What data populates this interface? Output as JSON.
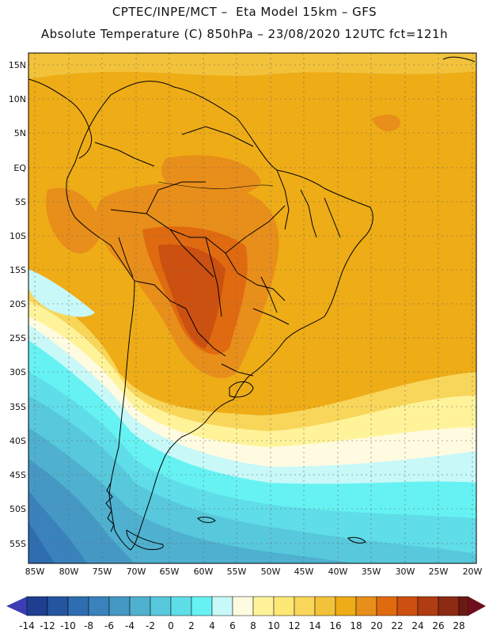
{
  "title": {
    "line1": "CPTEC/INPE/MCT –  Eta Model 15km – GFS",
    "line2": "Absolute Temperature (C) 850hPa – 23/08/2020 12UTC fct=121h"
  },
  "map": {
    "lat_labels": [
      "15N",
      "10N",
      "5N",
      "EQ",
      "5S",
      "10S",
      "15S",
      "20S",
      "25S",
      "30S",
      "35S",
      "40S",
      "45S",
      "50S",
      "55S"
    ],
    "lon_labels": [
      "85W",
      "80W",
      "75W",
      "70W",
      "65W",
      "60W",
      "55W",
      "50W",
      "45W",
      "40W",
      "35W",
      "30W",
      "25W",
      "20W"
    ]
  },
  "colorbar": {
    "labels": [
      "-14",
      "-12",
      "-10",
      "-8",
      "-6",
      "-4",
      "-2",
      "0",
      "2",
      "4",
      "6",
      "8",
      "10",
      "12",
      "14",
      "16",
      "18",
      "20",
      "22",
      "24",
      "26",
      "28"
    ],
    "colors": [
      "#1e3f8f",
      "#25559e",
      "#2e6db0",
      "#3a82bc",
      "#4598c4",
      "#4fb0cf",
      "#58c8dc",
      "#5fdde8",
      "#66f2f2",
      "#c8f8f8",
      "#fffbe0",
      "#fff39a",
      "#fde875",
      "#f8d65a",
      "#f2c23a",
      "#eeac16",
      "#e88e1a",
      "#e06a10",
      "#cc5010",
      "#b03c12",
      "#8c2a14",
      "#6a1a14"
    ],
    "left_tip": "#3c3cb4",
    "right_tip": "#6e0f1e"
  }
}
